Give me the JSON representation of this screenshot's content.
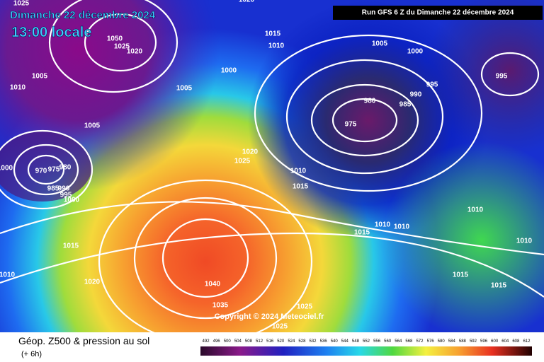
{
  "header": {
    "date": "Dimanche 22 décembre 2024",
    "time": "13:00 locale",
    "run": "Run GFS 6 Z du Dimanche 22 décembre 2024"
  },
  "footer": {
    "title": "Géop. Z500 & pression au sol",
    "lead": "(+ 6h)",
    "copyright": "Copyright © 2024 Meteociel.fr"
  },
  "scale": {
    "labels": [
      "492",
      "496",
      "500",
      "504",
      "508",
      "512",
      "516",
      "520",
      "524",
      "528",
      "532",
      "536",
      "540",
      "544",
      "548",
      "552",
      "556",
      "560",
      "564",
      "568",
      "572",
      "576",
      "580",
      "584",
      "588",
      "592",
      "596",
      "600",
      "604",
      "608",
      "612"
    ]
  },
  "isobars": {
    "labels": [
      "1025",
      "1020",
      "1015",
      "1010",
      "1005",
      "1000",
      "1050",
      "1025",
      "1020",
      "1005",
      "1010",
      "1000",
      "1005",
      "995",
      "995",
      "990",
      "985",
      "980",
      "975",
      "1005",
      "1020",
      "1025",
      "1010",
      "1015",
      "1000",
      "970",
      "975",
      "980",
      "985",
      "990",
      "995",
      "1000",
      "1010",
      "1010",
      "1010",
      "1015",
      "1010",
      "1015",
      "1010",
      "1020",
      "1040",
      "1015",
      "1015",
      "1035",
      "1025",
      "1025"
    ]
  }
}
